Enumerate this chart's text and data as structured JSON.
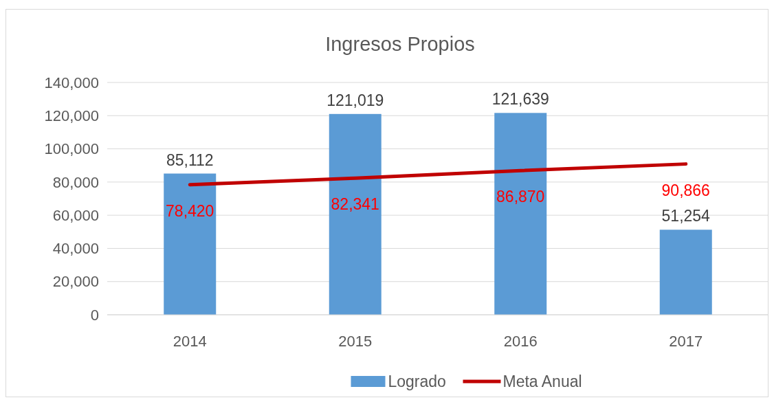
{
  "chart_data": {
    "type": "bar",
    "title": "Ingresos Propios",
    "categories": [
      "2014",
      "2015",
      "2016",
      "2017"
    ],
    "series": [
      {
        "name": "Logrado",
        "color": "#5b9bd5",
        "values": [
          85112,
          121019,
          121639,
          51254
        ],
        "value_labels": [
          "85,112",
          "121,019",
          "121,639",
          "51,254"
        ]
      },
      {
        "name": "Meta Anual",
        "type": "line",
        "color": "#c00000",
        "values": [
          78420,
          82341,
          86870,
          90866
        ],
        "value_labels": [
          "78,420",
          "82,341",
          "86,870",
          "90,866"
        ]
      }
    ],
    "ylim": [
      0,
      140000
    ],
    "yticks": [
      0,
      {
        "value": 20000,
        "label": "20,000"
      },
      {
        "value": 40000,
        "label": "40,000"
      },
      {
        "value": 60000,
        "label": "60,000"
      },
      {
        "value": 80000,
        "label": "80,000"
      },
      {
        "value": 100000,
        "label": "100,000"
      },
      {
        "value": 120000,
        "label": "120,000"
      },
      {
        "value": 140000,
        "label": "140,000"
      }
    ],
    "grid": "y",
    "legend": "bottom"
  }
}
